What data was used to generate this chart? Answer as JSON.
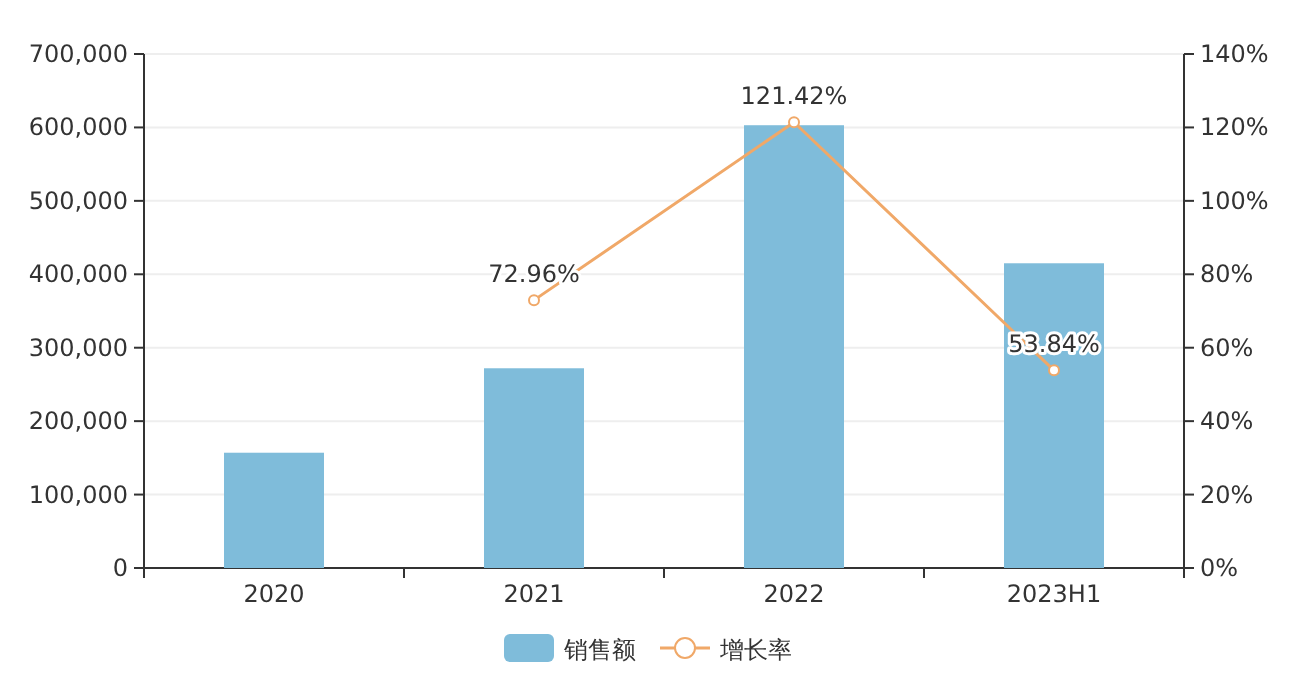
{
  "chart_data": {
    "type": "bar",
    "categories": [
      "2020",
      "2021",
      "2022",
      "2023H1"
    ],
    "series": [
      {
        "name": "销售额",
        "color": "#7fbcda",
        "values": [
          157000,
          272000,
          603000,
          415000
        ]
      },
      {
        "name": "增长率",
        "type": "line",
        "axis": "y2",
        "color": "#f0a868",
        "marker": "circle",
        "values": [
          null,
          72.96,
          121.42,
          53.84
        ],
        "value_labels": [
          null,
          "72.96%",
          "121.42%",
          "53.84%"
        ]
      }
    ],
    "ylim": [
      0,
      700000
    ],
    "yticks": [
      0,
      {
        "value": 100000,
        "label": "100,000"
      },
      {
        "value": 200000,
        "label": "200,000"
      },
      {
        "value": 300000,
        "label": "300,000"
      },
      {
        "value": 400000,
        "label": "400,000"
      },
      {
        "value": 500000,
        "label": "500,000"
      },
      {
        "value": 600000,
        "label": "600,000"
      },
      {
        "value": 700000,
        "label": "700,000"
      }
    ],
    "y2lim": [
      0,
      140
    ],
    "y2ticks": [
      {
        "value": 0,
        "label": "0%"
      },
      {
        "value": 20,
        "label": "20%"
      },
      {
        "value": 40,
        "label": "40%"
      },
      {
        "value": 60,
        "label": "60%"
      },
      {
        "value": 80,
        "label": "80%"
      },
      {
        "value": 100,
        "label": "100%"
      },
      {
        "value": 120,
        "label": "120%"
      },
      {
        "value": 140,
        "label": "140%"
      }
    ],
    "grid": "y",
    "legend": "bottom"
  }
}
